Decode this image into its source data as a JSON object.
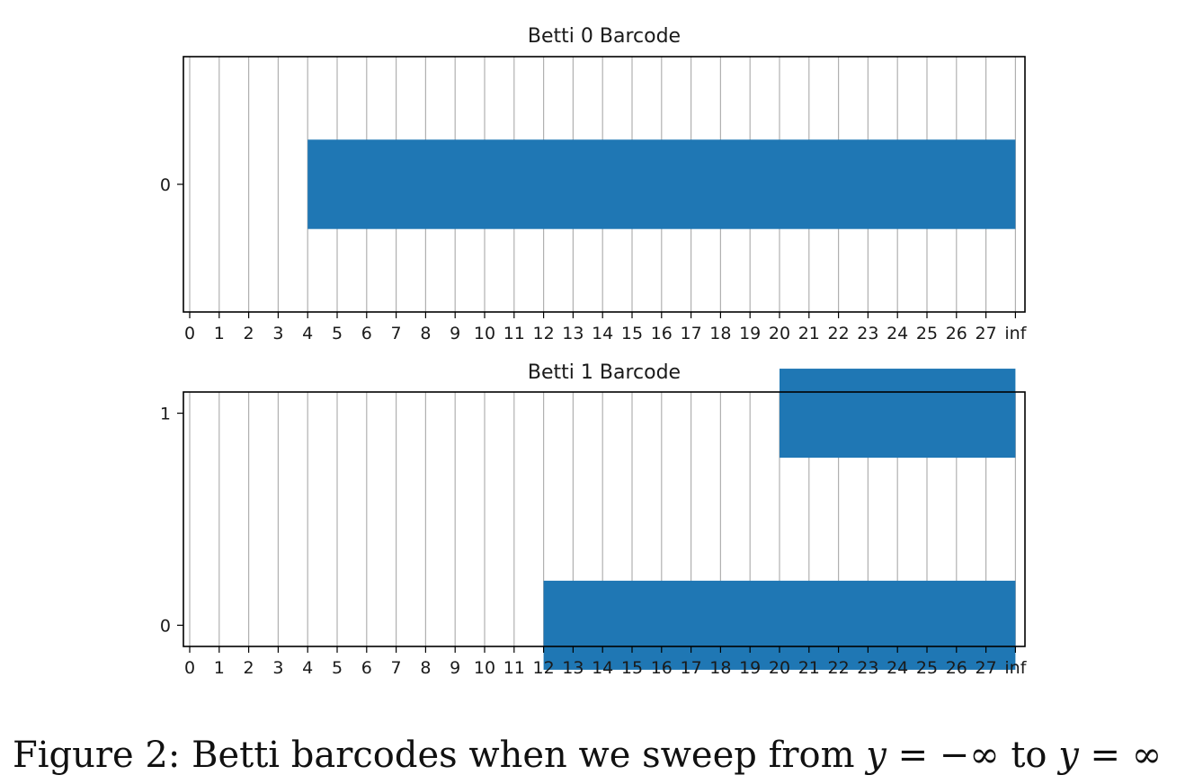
{
  "caption": {
    "label": "Figure 2:",
    "text_before": "Betti barcodes when we sweep from",
    "math_start": "y = −∞",
    "connector": "to",
    "math_end": "y = ∞"
  },
  "chart_data": [
    {
      "type": "bar",
      "orientation": "horizontal",
      "title": "Betti 0 Barcode",
      "xlabel": "",
      "ylabel": "",
      "x_tick_labels": [
        "0",
        "1",
        "2",
        "3",
        "4",
        "5",
        "6",
        "7",
        "8",
        "9",
        "10",
        "11",
        "12",
        "13",
        "14",
        "15",
        "16",
        "17",
        "18",
        "19",
        "20",
        "21",
        "22",
        "23",
        "24",
        "25",
        "26",
        "27",
        "inf"
      ],
      "y_tick_labels": [
        "0"
      ],
      "ylim": [
        -0.6,
        0.6
      ],
      "grid": "vertical",
      "bar_color": "#1f77b4",
      "bars": [
        {
          "y": 0,
          "start": 4,
          "end": "inf"
        }
      ]
    },
    {
      "type": "bar",
      "orientation": "horizontal",
      "title": "Betti 1 Barcode",
      "xlabel": "",
      "ylabel": "",
      "x_tick_labels": [
        "0",
        "1",
        "2",
        "3",
        "4",
        "5",
        "6",
        "7",
        "8",
        "9",
        "10",
        "11",
        "12",
        "13",
        "14",
        "15",
        "16",
        "17",
        "18",
        "19",
        "20",
        "21",
        "22",
        "23",
        "24",
        "25",
        "26",
        "27",
        "inf"
      ],
      "y_tick_labels": [
        "0",
        "1"
      ],
      "ylim": [
        -0.1,
        1.1
      ],
      "grid": "vertical",
      "bar_color": "#1f77b4",
      "bars": [
        {
          "y": 0,
          "start": 12,
          "end": "inf"
        },
        {
          "y": 1,
          "start": 20,
          "end": "inf"
        }
      ]
    }
  ]
}
